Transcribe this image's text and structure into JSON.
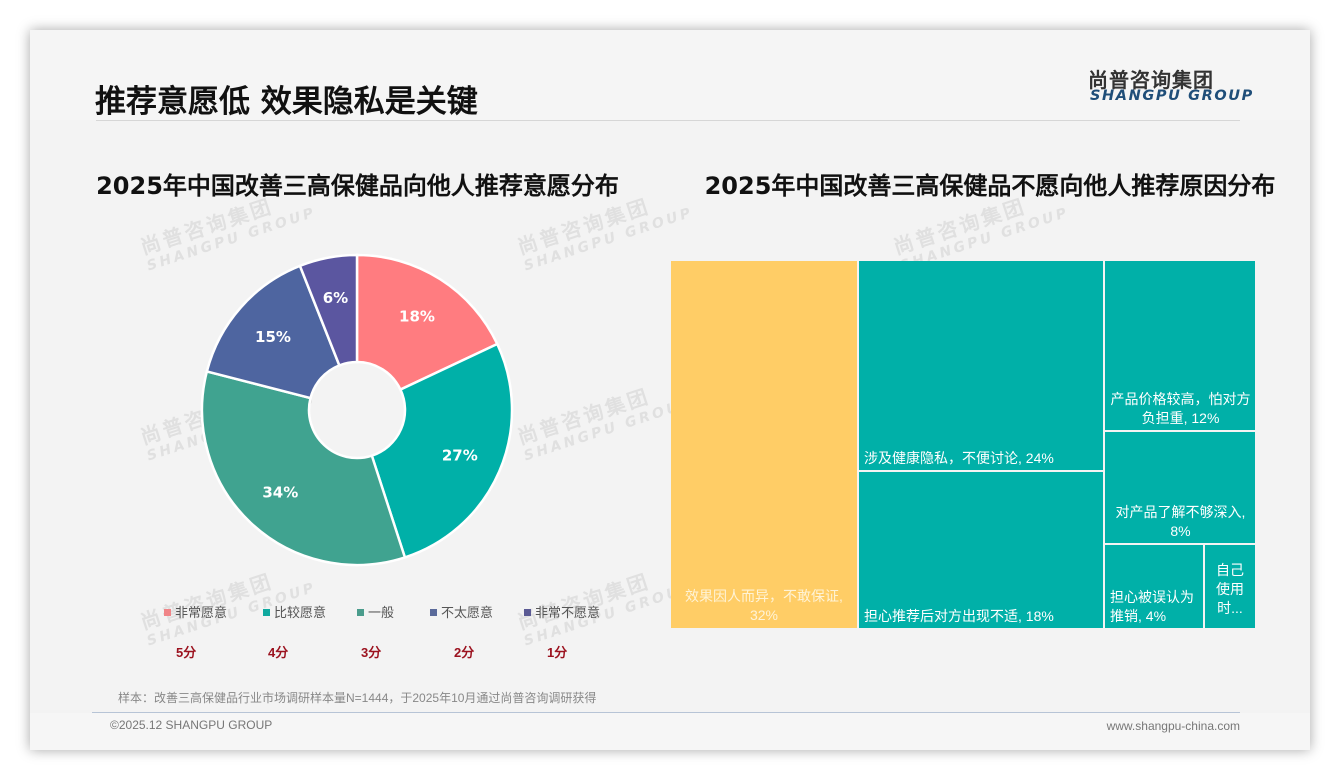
{
  "header": {
    "title": "推荐意愿低 效果隐私是关键",
    "logo_cn": "尚普咨询集团",
    "logo_en": "SHANGPU GROUP"
  },
  "watermark": {
    "cn": "尚普咨询集团",
    "en": "SHANGPU GROUP"
  },
  "left_chart": {
    "title": "2025年中国改善三高保健品向他人推荐意愿分布",
    "legend": [
      {
        "label": "非常愿意",
        "color": "#ff7c80",
        "score": "5分"
      },
      {
        "label": "比较愿意",
        "color": "#00b0a8",
        "score": "4分"
      },
      {
        "label": "一般",
        "color": "#40a390",
        "score": "3分"
      },
      {
        "label": "不太愿意",
        "color": "#4e65a0",
        "score": "2分"
      },
      {
        "label": "非常不愿意",
        "color": "#5b56a0",
        "score": "1分"
      }
    ]
  },
  "right_chart": {
    "title": "2025年中国改善三高保健品不愿向他人推荐原因分布"
  },
  "chart_data": [
    {
      "type": "pie",
      "subtype": "donut",
      "title": "2025年中国改善三高保健品向他人推荐意愿分布",
      "categories": [
        "非常愿意",
        "比较愿意",
        "一般",
        "不太愿意",
        "非常不愿意"
      ],
      "scores": [
        "5分",
        "4分",
        "3分",
        "2分",
        "1分"
      ],
      "values": [
        18,
        27,
        34,
        15,
        6
      ],
      "labels": [
        "18%",
        "27%",
        "34%",
        "15%",
        "6%"
      ],
      "colors": [
        "#ff7c80",
        "#00b0a8",
        "#40a390",
        "#4e65a0",
        "#5b56a0"
      ],
      "legend_position": "bottom"
    },
    {
      "type": "treemap",
      "title": "2025年中国改善三高保健品不愿向他人推荐原因分布",
      "categories": [
        "效果因人而异，不敢保证",
        "涉及健康隐私，不便讨论",
        "担心推荐后对方出现不适",
        "产品价格较高，怕对方负担重",
        "对产品了解不够深入",
        "担心被误认为推销",
        "自己使用时..."
      ],
      "values": [
        32,
        24,
        18,
        12,
        8,
        4,
        2
      ],
      "labels": [
        "效果因人而异，不敢保证, 32%",
        "涉及健康隐私，不便讨论, 24%",
        "担心推荐后对方出现不适, 18%",
        "产品价格较高，怕对方负担重, 12%",
        "对产品了解不够深入, 8%",
        "担心被误认为推销, 4%",
        "自己使用时..."
      ],
      "colors": [
        "#ffcd66",
        "#00b0a8",
        "#00b0a8",
        "#00b0a8",
        "#00b0a8",
        "#00b0a8",
        "#00b0a8"
      ]
    }
  ],
  "footer": {
    "sample_note": "样本：改善三高保健品行业市场调研样本量N=1444，于2025年10月通过尚普咨询调研获得",
    "copyright": "©2025.12 SHANGPU GROUP",
    "website": "www.shangpu-china.com"
  }
}
